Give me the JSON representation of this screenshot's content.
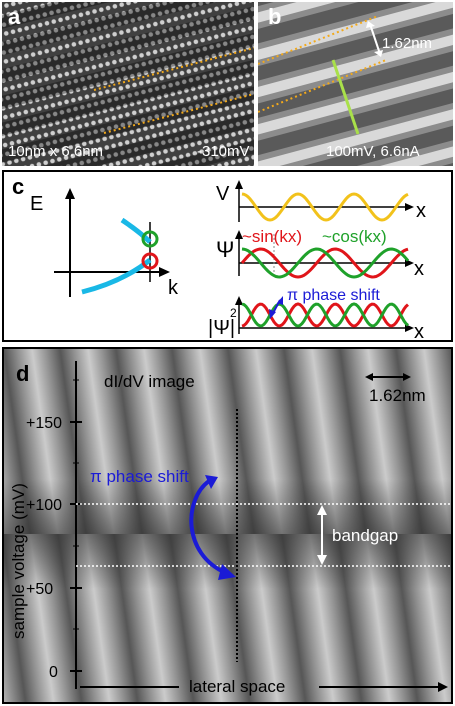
{
  "panel_a": {
    "label": "a",
    "scan_size": "10nm x 6.6nm",
    "bias": "-310mV"
  },
  "panel_b": {
    "label": "b",
    "period": "1.62nm",
    "setpoint": "100mV, 6.6nA"
  },
  "panel_c": {
    "label": "c",
    "energy_axis": "E",
    "k_axis": "k",
    "potential": "V",
    "psi": "Ψ",
    "psi_squared": "|Ψ|",
    "psi_squared_exp": "2",
    "sin_label": "~sin(kx)",
    "cos_label": "~cos(kx)",
    "phase_shift": "π phase shift",
    "x_label": "x"
  },
  "panel_d": {
    "label": "d",
    "title": "dI/dV image",
    "scale": "1.62nm",
    "ylabel": "sample voltage (mV)",
    "yticks": [
      "+150",
      "+100",
      "+50",
      "0"
    ],
    "phase_shift": "π phase shift",
    "bandgap": "bandgap",
    "lateral": "lateral space"
  },
  "colors": {
    "yellow": "#f2c21b",
    "green": "#1fa12a",
    "red": "#e0151a",
    "blue": "#1b1bd6",
    "cyan": "#19b8e6"
  }
}
